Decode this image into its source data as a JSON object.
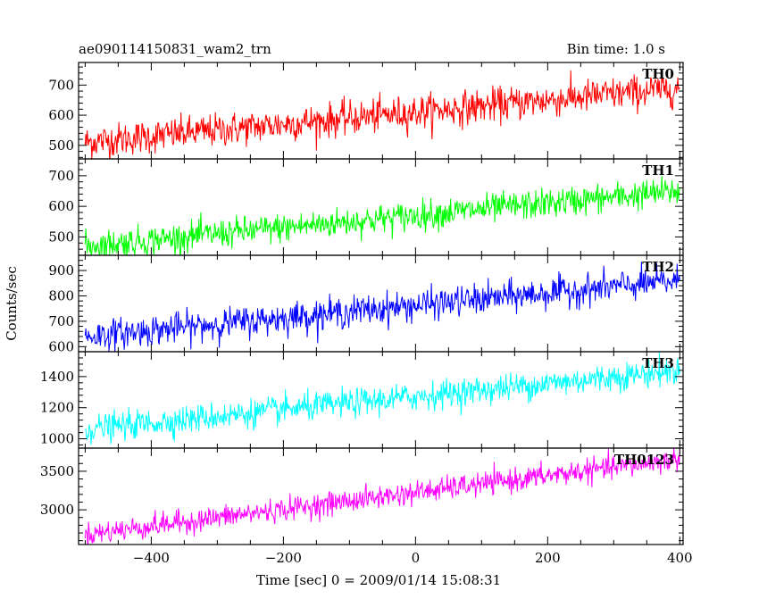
{
  "header": {
    "title": "ae090114150831_wam2_trn",
    "bin_time": "Bin time: 1.0 s"
  },
  "chart_data": {
    "type": "line",
    "xlabel": "Time [sec] 0 = 2009/01/14 15:08:31",
    "ylabel": "Counts/sec",
    "xlim": [
      -510,
      405
    ],
    "x_ticks": [
      -400,
      -200,
      0,
      200,
      400
    ],
    "x_tick_labels": [
      "−400",
      "−200",
      "0",
      "200",
      "400"
    ],
    "x_range_data": [
      -500,
      400
    ],
    "panels": [
      {
        "label": "TH0",
        "color": "#ff0000",
        "ylim": [
          455,
          775
        ],
        "yticks": [
          500,
          600,
          700
        ],
        "trend_start": 510,
        "trend_end": 690,
        "noise": 28
      },
      {
        "label": "TH1",
        "color": "#00ff00",
        "ylim": [
          440,
          755
        ],
        "yticks": [
          500,
          600,
          700
        ],
        "trend_start": 470,
        "trend_end": 650,
        "noise": 24
      },
      {
        "label": "TH2",
        "color": "#0000ff",
        "ylim": [
          580,
          960
        ],
        "yticks": [
          600,
          700,
          800,
          900
        ],
        "trend_start": 640,
        "trend_end": 860,
        "noise": 30
      },
      {
        "label": "TH3",
        "color": "#00ffff",
        "ylim": [
          940,
          1560
        ],
        "yticks": [
          1000,
          1200,
          1400
        ],
        "trend_start": 1060,
        "trend_end": 1440,
        "noise": 45
      },
      {
        "label": "TH0123",
        "color": "#ff00ff",
        "ylim": [
          2550,
          3800
        ],
        "yticks": [
          3000,
          3500
        ],
        "trend_start": 2680,
        "trend_end": 3660,
        "noise": 75
      }
    ]
  }
}
